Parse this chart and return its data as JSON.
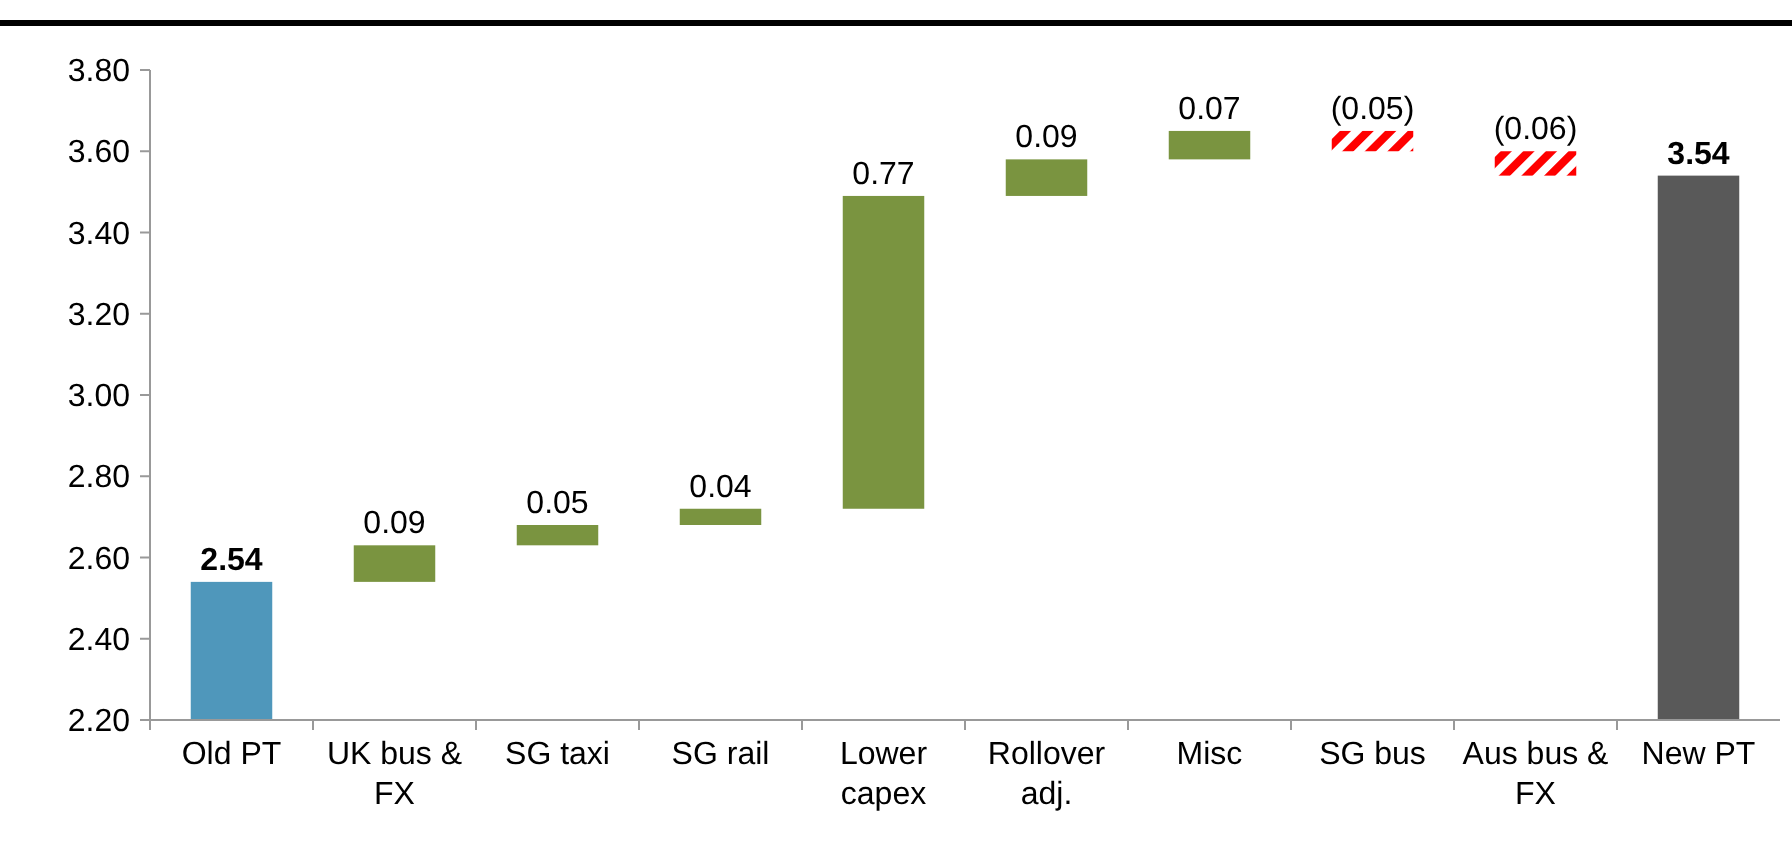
{
  "chart_data": {
    "type": "bar",
    "categories": [
      "Old PT",
      "UK bus & FX",
      "SG taxi",
      "SG rail",
      "Lower capex",
      "Rollover adj.",
      "Misc",
      "SG bus",
      "Aus bus & FX",
      "New PT"
    ],
    "values": [
      2.54,
      0.09,
      0.05,
      0.04,
      0.77,
      0.09,
      0.07,
      -0.05,
      -0.06,
      3.54
    ],
    "base": [
      null,
      2.54,
      2.63,
      2.68,
      2.72,
      3.49,
      3.58,
      3.65,
      3.6,
      null
    ],
    "colors": [
      "#4f97bb",
      "#7a9440",
      "#7a9440",
      "#7a9440",
      "#7a9440",
      "#7a9440",
      "#7a9440",
      "#ff0000",
      "#ff0000",
      "#595959"
    ],
    "value_labels": [
      "2.54",
      "0.09",
      "0.05",
      "0.04",
      "0.77",
      "0.09",
      "0.07",
      "(0.05)",
      "(0.06)",
      "3.54"
    ],
    "ylim": [
      2.2,
      3.8
    ],
    "yticks": [
      {
        "value": 2.2,
        "label": "2.20"
      },
      {
        "value": 2.4,
        "label": "2.40"
      },
      {
        "value": 2.6,
        "label": "2.60"
      },
      {
        "value": 2.8,
        "label": "2.80"
      },
      {
        "value": 3.0,
        "label": "3.00"
      },
      {
        "value": 3.2,
        "label": "3.20"
      },
      {
        "value": 3.4,
        "label": "3.40"
      },
      {
        "value": 3.6,
        "label": "3.60"
      },
      {
        "value": 3.8,
        "label": "3.80"
      }
    ],
    "grid": false
  }
}
